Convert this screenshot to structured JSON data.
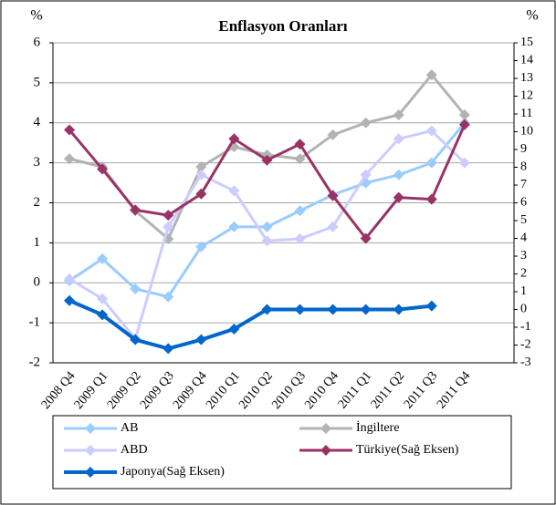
{
  "chart_data": {
    "type": "line",
    "title": "Enflasyon Oranları",
    "y_label": "%",
    "y2_label": "%",
    "categories": [
      "2008 Q4",
      "2009 Q1",
      "2009 Q2",
      "2009 Q3",
      "2009 Q4",
      "2010 Q1",
      "2010 Q2",
      "2010 Q3",
      "2010 Q4",
      "2011 Q1",
      "2011 Q2",
      "2011 Q3",
      "2011 Q4"
    ],
    "ylim": [
      -2,
      6
    ],
    "yticks": [
      -2,
      -1,
      0,
      1,
      2,
      3,
      4,
      5,
      6
    ],
    "y2lim": [
      -3,
      15
    ],
    "y2ticks": [
      -3,
      -2,
      -1,
      0,
      1,
      2,
      3,
      4,
      5,
      6,
      7,
      8,
      9,
      10,
      11,
      12,
      13,
      14,
      15
    ],
    "grid": true,
    "series": [
      {
        "name": "AB",
        "color": "#99ccff",
        "values": [
          0.05,
          0.6,
          -0.15,
          -0.35,
          0.9,
          1.4,
          1.4,
          1.8,
          2.2,
          2.5,
          2.7,
          3.0,
          4.0
        ]
      },
      {
        "name": "İngiltere",
        "color": "#b3b3b3",
        "values": [
          3.1,
          2.9,
          1.8,
          1.1,
          2.9,
          3.4,
          3.2,
          3.1,
          3.7,
          4.0,
          4.2,
          5.2,
          4.2
        ]
      },
      {
        "name": "ABD",
        "color": "#ccccff",
        "values": [
          0.1,
          -0.4,
          -1.4,
          1.4,
          2.7,
          2.3,
          1.05,
          1.1,
          1.4,
          2.7,
          3.6,
          3.8,
          3.0
        ]
      },
      {
        "name": "Türkiye(Sağ Eksen)",
        "color": "#993366",
        "axis": "y2",
        "values": [
          10.1,
          7.9,
          5.6,
          5.3,
          6.5,
          9.6,
          8.4,
          9.3,
          6.4,
          4.0,
          6.3,
          6.2,
          10.4
        ]
      },
      {
        "name": "Japonya(Sağ Eksen)",
        "color": "#0066cc",
        "axis": "y2",
        "values": [
          0.5,
          -0.3,
          -1.7,
          -2.2,
          -1.7,
          -1.1,
          0.0,
          0.0,
          0.0,
          0.0,
          0.0,
          0.2,
          null
        ]
      }
    ]
  }
}
